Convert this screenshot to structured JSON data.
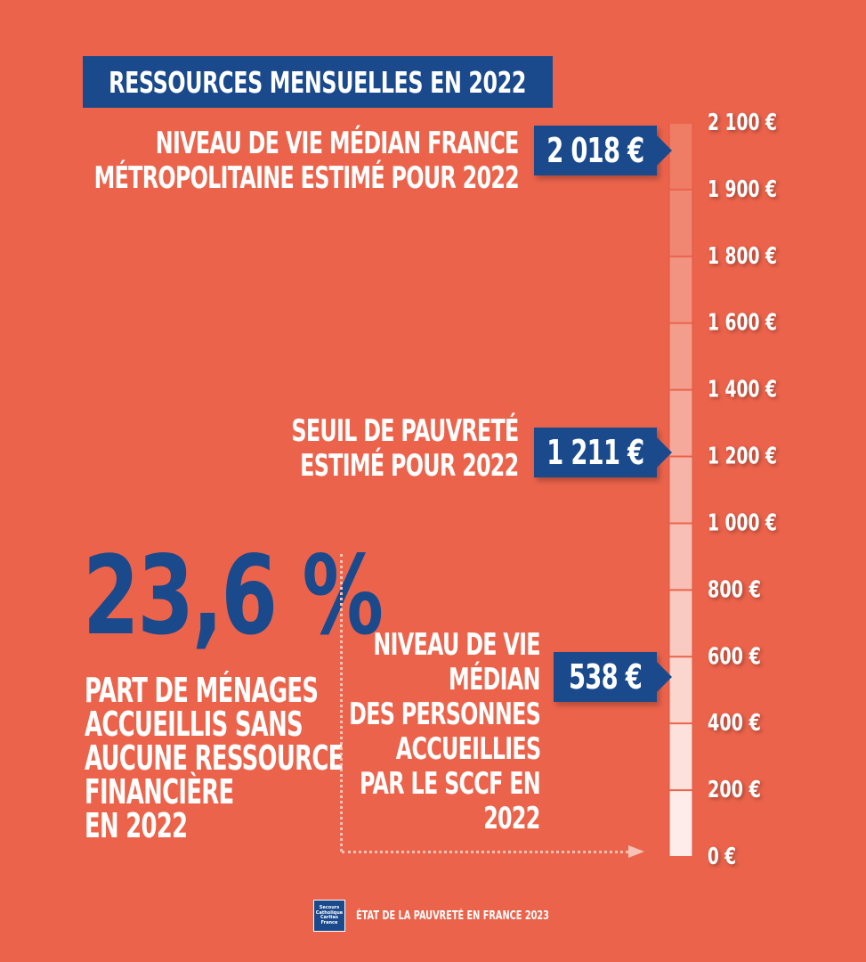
{
  "title": "RESSOURCES MENSUELLES EN 2022",
  "chart_data": {
    "type": "bar",
    "orientation": "vertical-scale",
    "ticks": [
      {
        "label": "0 €",
        "value": 0
      },
      {
        "label": "200 €",
        "value": 200
      },
      {
        "label": "400 €",
        "value": 400
      },
      {
        "label": "600 €",
        "value": 600
      },
      {
        "label": "800 €",
        "value": 800
      },
      {
        "label": "1 000 €",
        "value": 1000
      },
      {
        "label": "1 200 €",
        "value": 1200
      },
      {
        "label": "1 400 €",
        "value": 1400
      },
      {
        "label": "1 600 €",
        "value": 1600
      },
      {
        "label": "1 800 €",
        "value": 1800
      },
      {
        "label": "1 900 €",
        "value": 1900
      },
      {
        "label": "2 100 €",
        "value": 2100
      }
    ],
    "markers": [
      {
        "value": 2018,
        "value_label": "2 018 €",
        "label_lines": [
          "NIVEAU DE VIE MÉDIAN FRANCE",
          "MÉTROPOLITAINE ESTIMÉ POUR 2022"
        ]
      },
      {
        "value": 1211,
        "value_label": "1 211 €",
        "label_lines": [
          "SEUIL DE PAUVRETÉ",
          "ESTIMÉ POUR 2022"
        ]
      },
      {
        "value": 538,
        "value_label": "538 €",
        "label_lines": [
          "NIVEAU DE VIE",
          "MÉDIAN",
          "DES PERSONNES",
          "ACCUEILLIES",
          "PAR LE SCCF EN",
          "2022"
        ]
      }
    ]
  },
  "highlight": {
    "value": "23,6 %",
    "description_lines": [
      "PART DE MÉNAGES",
      "ACCUEILLIS SANS",
      "AUCUNE RESSOURCE",
      "FINANCIÈRE",
      "EN 2022"
    ]
  },
  "footer": {
    "logo_lines": [
      "Secours",
      "Catholique",
      "Caritas France"
    ],
    "text": "ÉTAT DE LA PAUVRETÉ EN FRANCE 2023"
  },
  "colors": {
    "background": "#ec634b",
    "accent": "#1a4a8c",
    "scale_top": "#ef7c65",
    "scale_bottom": "#fdecea"
  }
}
